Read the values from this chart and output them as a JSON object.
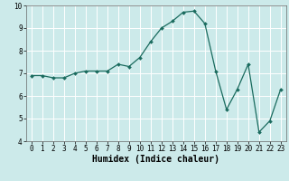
{
  "x": [
    0,
    1,
    2,
    3,
    4,
    5,
    6,
    7,
    8,
    9,
    10,
    11,
    12,
    13,
    14,
    15,
    16,
    17,
    18,
    19,
    20,
    21,
    22,
    23
  ],
  "y": [
    6.9,
    6.9,
    6.8,
    6.8,
    7.0,
    7.1,
    7.1,
    7.1,
    7.4,
    7.3,
    7.7,
    8.4,
    9.0,
    9.3,
    9.7,
    9.75,
    9.2,
    7.1,
    5.4,
    6.3,
    7.4,
    4.4,
    4.9,
    6.3
  ],
  "line_color": "#1a6b5e",
  "marker": "D",
  "marker_size": 2.0,
  "line_width": 0.9,
  "bg_color": "#cceaea",
  "grid_color": "#ffffff",
  "xlabel": "Humidex (Indice chaleur)",
  "xlabel_fontsize": 7,
  "xlim": [
    -0.5,
    23.5
  ],
  "ylim": [
    4,
    10
  ],
  "yticks": [
    4,
    5,
    6,
    7,
    8,
    9,
    10
  ],
  "xticks": [
    0,
    1,
    2,
    3,
    4,
    5,
    6,
    7,
    8,
    9,
    10,
    11,
    12,
    13,
    14,
    15,
    16,
    17,
    18,
    19,
    20,
    21,
    22,
    23
  ],
  "tick_fontsize": 5.5,
  "figsize": [
    3.2,
    2.0
  ],
  "dpi": 100
}
